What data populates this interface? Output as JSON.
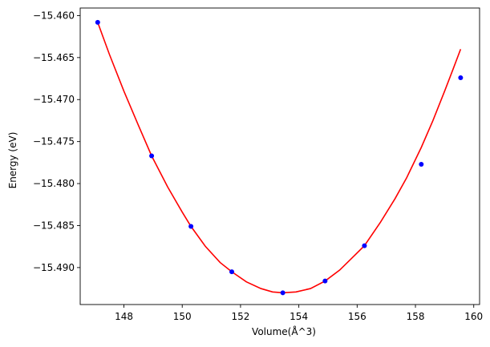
{
  "chart_data": {
    "type": "scatter",
    "title": "",
    "xlabel": "Volume(Å^3)",
    "ylabel": "Energy (eV)",
    "xlim": [
      146.5,
      160.2
    ],
    "ylim": [
      -15.4944,
      -15.4591
    ],
    "xticks": [
      148,
      150,
      152,
      154,
      156,
      158,
      160
    ],
    "yticks": [
      -15.46,
      -15.465,
      -15.47,
      -15.475,
      -15.48,
      -15.485,
      -15.49
    ],
    "ytick_labels": [
      "−15.460",
      "−15.465",
      "−15.470",
      "−15.475",
      "−15.480",
      "−15.485",
      "−15.490"
    ],
    "grid": false,
    "legend": "none",
    "series": [
      {
        "kind": "points",
        "color": "#0000ff",
        "x": [
          147.1,
          148.95,
          150.3,
          151.7,
          153.45,
          154.9,
          156.25,
          158.2,
          159.55
        ],
        "y": [
          -15.4608,
          -15.4767,
          -15.4851,
          -15.4905,
          -15.493,
          -15.4916,
          -15.4874,
          -15.4777,
          -15.4674
        ]
      },
      {
        "kind": "fit_curve",
        "color": "#ff0000",
        "x": [
          147.1,
          147.5,
          148.0,
          148.5,
          148.95,
          149.5,
          150.0,
          150.3,
          150.8,
          151.3,
          151.7,
          152.2,
          152.7,
          153.1,
          153.45,
          153.9,
          154.4,
          154.9,
          155.4,
          155.9,
          156.25,
          156.8,
          157.3,
          157.7,
          158.2,
          158.6,
          159.0,
          159.3,
          159.55
        ],
        "y": [
          -15.4608,
          -15.4646,
          -15.469,
          -15.4731,
          -15.4767,
          -15.4804,
          -15.4834,
          -15.4851,
          -15.4875,
          -15.4894,
          -15.4905,
          -15.4917,
          -15.4925,
          -15.4929,
          -15.493,
          -15.4929,
          -15.4925,
          -15.4916,
          -15.4903,
          -15.4886,
          -15.4874,
          -15.4846,
          -15.4818,
          -15.4793,
          -15.4757,
          -15.4725,
          -15.469,
          -15.4663,
          -15.464
        ]
      }
    ]
  }
}
